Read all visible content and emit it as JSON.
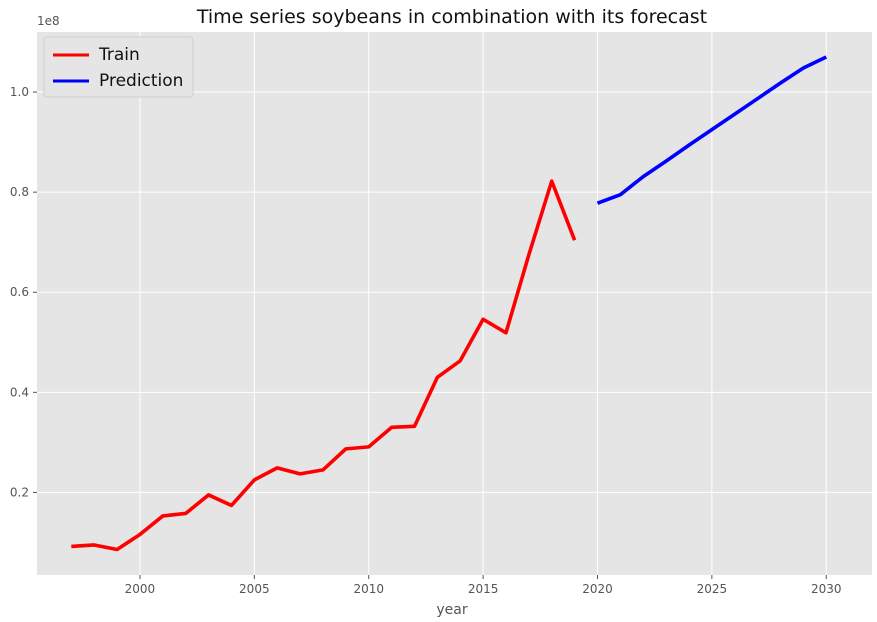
{
  "chart_data": {
    "type": "line",
    "title": "Time series soybeans in combination with its forecast",
    "xlabel": "year",
    "ylabel": "",
    "y_offset_label": "1e8",
    "xlim": [
      1995.5,
      2032
    ],
    "ylim": [
      3500000,
      112000000
    ],
    "x_ticks": [
      2000,
      2005,
      2010,
      2015,
      2020,
      2025,
      2030
    ],
    "y_ticks": [
      20000000,
      40000000,
      60000000,
      80000000,
      100000000
    ],
    "y_tick_labels": [
      "0.2",
      "0.4",
      "0.6",
      "0.8",
      "1.0"
    ],
    "grid": true,
    "legend_position": "top-left",
    "series": [
      {
        "name": "Train",
        "color": "#ff0000",
        "x": [
          1997,
          1998,
          1999,
          2000,
          2001,
          2002,
          2003,
          2004,
          2005,
          2006,
          2007,
          2008,
          2009,
          2010,
          2011,
          2012,
          2013,
          2014,
          2015,
          2016,
          2017,
          2018,
          2019
        ],
        "values": [
          9200000,
          9500000,
          8600000,
          11600000,
          15300000,
          15800000,
          19500000,
          17400000,
          22500000,
          24900000,
          23700000,
          24500000,
          28700000,
          29100000,
          33000000,
          33200000,
          43000000,
          46300000,
          54600000,
          51900000,
          67500000,
          82200000,
          70400000
        ]
      },
      {
        "name": "Prediction",
        "color": "#0000ff",
        "x": [
          2020,
          2021,
          2022,
          2023,
          2024,
          2025,
          2026,
          2027,
          2028,
          2029,
          2030
        ],
        "values": [
          77800000,
          79500000,
          83100000,
          86200000,
          89400000,
          92500000,
          95600000,
          98700000,
          101800000,
          104800000,
          107000000
        ]
      }
    ]
  }
}
